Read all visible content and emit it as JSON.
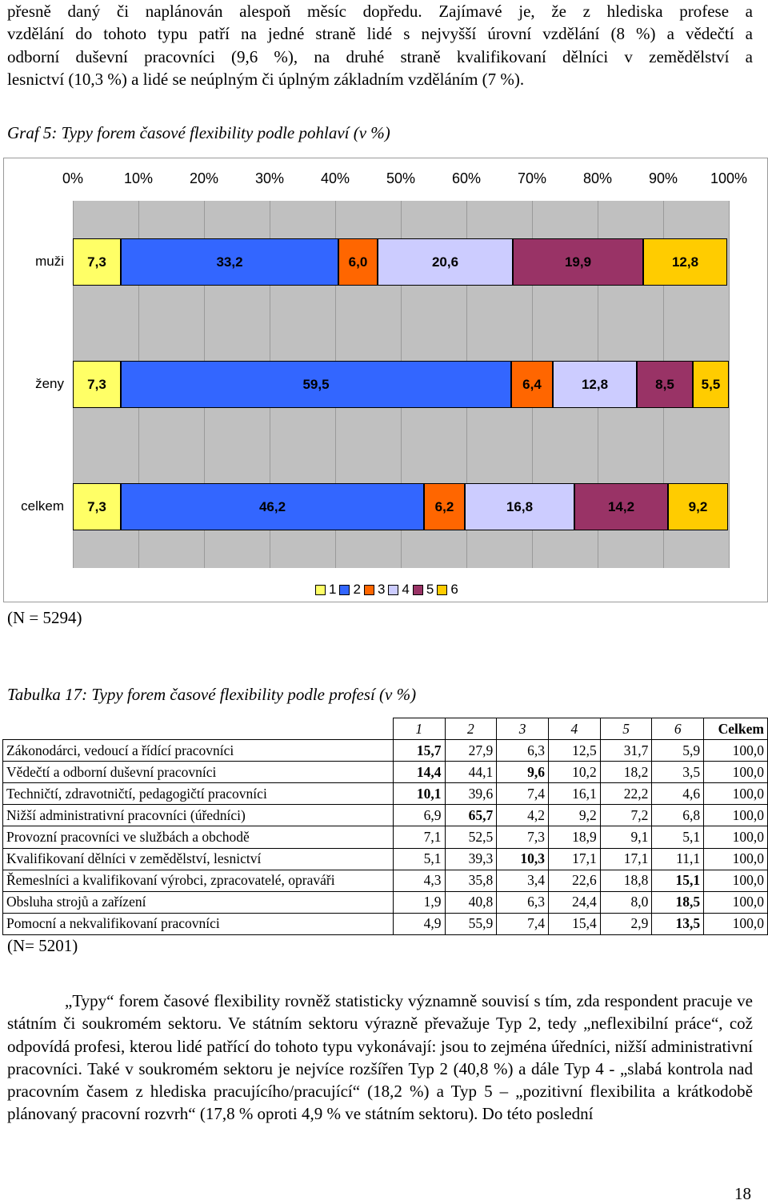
{
  "intro_paragraph": {
    "lines": [
      "přesně daný či naplánován alespoň měsíc dopředu. Zajímavé je, že z hlediska profese a",
      "vzdělání do tohoto typu patří na jedné straně lidé s nejvyšší úrovní vzdělání (8 %) a vědečtí a",
      "odborní duševní pracovníci (9,6 %), na druhé straně kvalifikovaní dělníci v zemědělství a",
      "lesnictví (10,3 %) a lidé se neúplným či úplným základním vzděláním (7 %)."
    ]
  },
  "graph_caption": "Graf 5: Typy forem časové flexibility podle pohlaví (v %)",
  "chart_data": {
    "type": "bar",
    "stacked": true,
    "orientation": "horizontal",
    "title": "",
    "xlabel": "",
    "ylabel": "",
    "xlim": [
      0,
      100
    ],
    "x_tick_labels": [
      "0%",
      "10%",
      "20%",
      "30%",
      "40%",
      "50%",
      "60%",
      "70%",
      "80%",
      "90%",
      "100%"
    ],
    "grid": true,
    "legend_position": "bottom",
    "categories": [
      "muži",
      "ženy",
      "celkem"
    ],
    "series": [
      {
        "name": "1",
        "color": "#ffff66",
        "values": [
          7.3,
          7.3,
          7.3
        ],
        "labels": [
          "7,3",
          "7,3",
          "7,3"
        ]
      },
      {
        "name": "2",
        "color": "#3366ff",
        "values": [
          33.2,
          59.5,
          46.2
        ],
        "labels": [
          "33,2",
          "59,5",
          "46,2"
        ]
      },
      {
        "name": "3",
        "color": "#ff6600",
        "values": [
          6.0,
          6.4,
          6.2
        ],
        "labels": [
          "6,0",
          "6,4",
          "6,2"
        ]
      },
      {
        "name": "4",
        "color": "#ccccff",
        "values": [
          20.6,
          12.8,
          16.8
        ],
        "labels": [
          "20,6",
          "12,8",
          "16,8"
        ]
      },
      {
        "name": "5",
        "color": "#993366",
        "values": [
          19.9,
          8.5,
          14.2
        ],
        "labels": [
          "19,9",
          "8,5",
          "14,2"
        ]
      },
      {
        "name": "6",
        "color": "#ffcc00",
        "values": [
          12.8,
          5.5,
          9.2
        ],
        "labels": [
          "12,8",
          "5,5",
          "9,2"
        ]
      }
    ],
    "plot_background": "#c0c0c0"
  },
  "graph_note": "(N = 5294)",
  "table_caption": "Tabulka 17: Typy forem časové flexibility podle profesí (v %)",
  "table": {
    "headers": [
      "1",
      "2",
      "3",
      "4",
      "5",
      "6",
      "Celkem"
    ],
    "rows": [
      {
        "name": "Zákonodárci, vedoucí a řídící pracovníci",
        "values": [
          "15,7",
          "27,9",
          "6,3",
          "12,5",
          "31,7",
          "5,9",
          "100,0"
        ],
        "bold": [
          0
        ]
      },
      {
        "name": "Vědečtí a odborní duševní pracovníci",
        "values": [
          "14,4",
          "44,1",
          "9,6",
          "10,2",
          "18,2",
          "3,5",
          "100,0"
        ],
        "bold": [
          0,
          2
        ]
      },
      {
        "name": "Techničtí, zdravotničtí, pedagogičtí pracovníci",
        "values": [
          "10,1",
          "39,6",
          "7,4",
          "16,1",
          "22,2",
          "4,6",
          "100,0"
        ],
        "bold": [
          0
        ]
      },
      {
        "name": "Nižší administrativní pracovníci (úředníci)",
        "values": [
          "6,9",
          "65,7",
          "4,2",
          "9,2",
          "7,2",
          "6,8",
          "100,0"
        ],
        "bold": [
          1
        ]
      },
      {
        "name": "Provozní pracovníci ve službách a obchodě",
        "values": [
          "7,1",
          "52,5",
          "7,3",
          "18,9",
          "9,1",
          "5,1",
          "100,0"
        ],
        "bold": []
      },
      {
        "name": "Kvalifikovaní dělníci v zemědělství, lesnictví",
        "values": [
          "5,1",
          "39,3",
          "10,3",
          "17,1",
          "17,1",
          "11,1",
          "100,0"
        ],
        "bold": [
          2
        ]
      },
      {
        "name": "Řemeslníci a kvalifikovaní výrobci, zpracovatelé, opraváři",
        "values": [
          "4,3",
          "35,8",
          "3,4",
          "22,6",
          "18,8",
          "15,1",
          "100,0"
        ],
        "bold": [
          5
        ]
      },
      {
        "name": "Obsluha strojů a zařízení",
        "values": [
          "1,9",
          "40,8",
          "6,3",
          "24,4",
          "8,0",
          "18,5",
          "100,0"
        ],
        "bold": [
          5
        ]
      },
      {
        "name": "Pomocní a nekvalifikovaní pracovníci",
        "values": [
          "4,9",
          "55,9",
          "7,4",
          "15,4",
          "2,9",
          "13,5",
          "100,0"
        ],
        "bold": [
          5
        ]
      }
    ]
  },
  "table_note": "(N= 5201)",
  "closing_paragraph": {
    "text": "„Typy“ forem časové flexibility rovněž statisticky významně souvisí s tím, zda respondent pracuje ve státním či soukromém sektoru. Ve státním sektoru výrazně převažuje Typ 2, tedy „neflexibilní práce“, což odpovídá profesi, kterou lidé patřící do tohoto typu vykonávají: jsou to zejména úředníci, nižší administrativní pracovníci. Také v soukromém sektoru je nejvíce rozšířen Typ 2 (40,8 %) a dále Typ 4 - „slabá kontrola nad pracovním časem z hlediska pracujícího/pracující“ (18,2 %) a Typ 5 – „pozitivní flexibilita a krátkodobě plánovaný pracovní rozvrh“ (17,8 % oproti 4,9 % ve státním sektoru). Do této poslední"
  },
  "page_number": "18"
}
